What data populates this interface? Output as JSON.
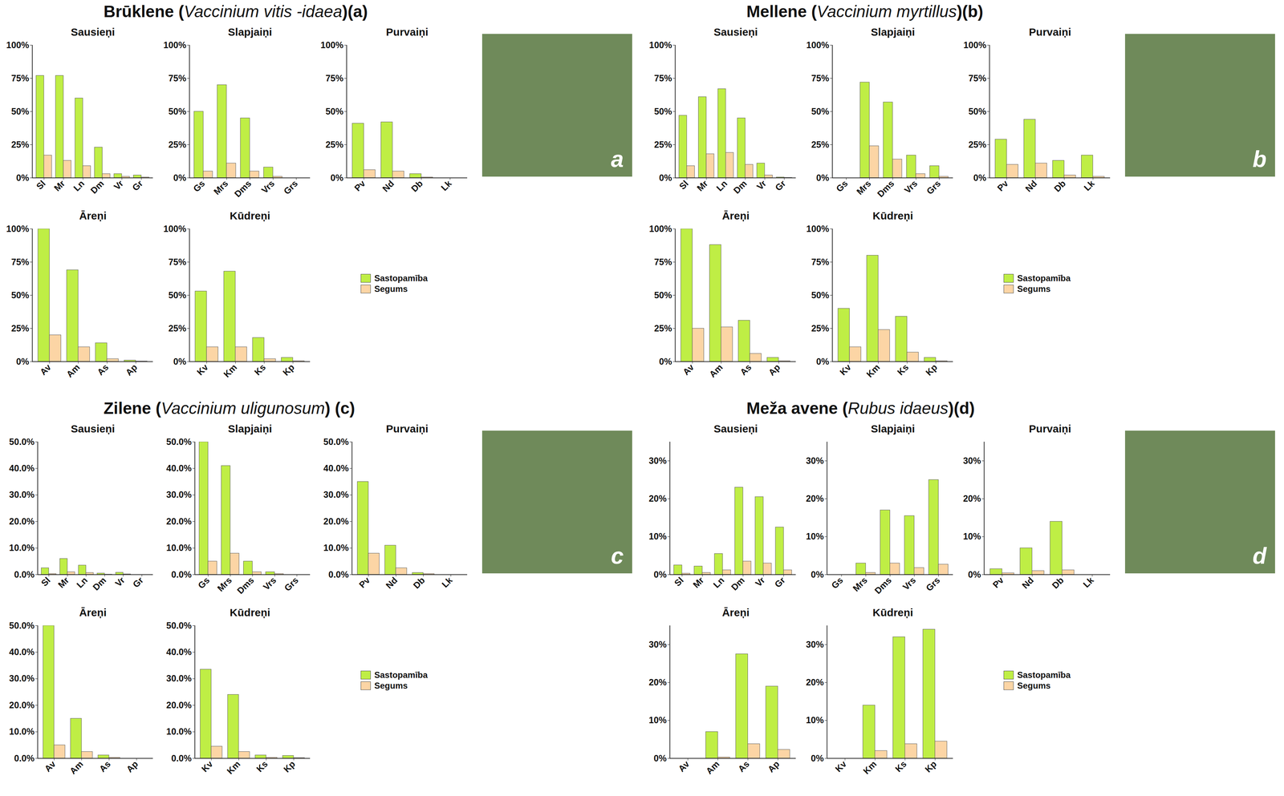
{
  "chart_data": [
    {
      "type": "bar",
      "title": "Brūklene (Vaccinium vitis -idaea)(a)",
      "annotations": [
        "a"
      ],
      "legend": "right",
      "ylim": [
        0,
        100
      ],
      "yticks": [
        {
          "value": 0,
          "label": "0%"
        },
        {
          "value": 25,
          "label": "25%"
        },
        {
          "value": 50,
          "label": "50%"
        },
        {
          "value": 75,
          "label": "75%"
        },
        {
          "value": 100,
          "label": "100%"
        }
      ],
      "panels": [
        {
          "title": "Sausieņi",
          "categories": [
            "Sl",
            "Mr",
            "Ln",
            "Dm",
            "Vr",
            "Gr"
          ],
          "series": [
            {
              "name": "Sastopamība",
              "color": "#bfee45",
              "values": [
                77,
                77,
                60,
                23,
                3,
                2
              ]
            },
            {
              "name": "Segums",
              "color": "#fcd5a5",
              "values": [
                17,
                13,
                9,
                3,
                1,
                0.5
              ]
            }
          ]
        },
        {
          "title": "Slapjaiņi",
          "categories": [
            "Gs",
            "Mrs",
            "Dms",
            "Vrs",
            "Grs"
          ],
          "series": [
            {
              "name": "Sastopamība",
              "color": "#bfee45",
              "values": [
                50,
                70,
                45,
                8,
                0
              ]
            },
            {
              "name": "Segums",
              "color": "#fcd5a5",
              "values": [
                5,
                11,
                5,
                1,
                0
              ]
            }
          ]
        },
        {
          "title": "Purvaiņi",
          "categories": [
            "Pv",
            "Nd",
            "Db",
            "Lk"
          ],
          "series": [
            {
              "name": "Sastopamība",
              "color": "#bfee45",
              "values": [
                41,
                42,
                3,
                0
              ]
            },
            {
              "name": "Segums",
              "color": "#fcd5a5",
              "values": [
                6,
                5,
                0.5,
                0
              ]
            }
          ]
        },
        {
          "title": "Āreņi",
          "categories": [
            "Av",
            "Am",
            "As",
            "Ap"
          ],
          "series": [
            {
              "name": "Sastopamība",
              "color": "#bfee45",
              "values": [
                100,
                69,
                14,
                1
              ]
            },
            {
              "name": "Segums",
              "color": "#fcd5a5",
              "values": [
                20,
                11,
                2,
                0.3
              ]
            }
          ]
        },
        {
          "title": "Kūdreņi",
          "categories": [
            "Kv",
            "Km",
            "Ks",
            "Kp"
          ],
          "series": [
            {
              "name": "Sastopamība",
              "color": "#bfee45",
              "values": [
                53,
                68,
                18,
                3
              ]
            },
            {
              "name": "Segums",
              "color": "#fcd5a5",
              "values": [
                11,
                11,
                2,
                0.5
              ]
            }
          ]
        }
      ]
    },
    {
      "type": "bar",
      "title": "Mellene (Vaccinium myrtillus)(b)",
      "annotations": [
        "b"
      ],
      "legend": "right",
      "ylim": [
        0,
        100
      ],
      "yticks": [
        {
          "value": 0,
          "label": "0%"
        },
        {
          "value": 25,
          "label": "25%"
        },
        {
          "value": 50,
          "label": "50%"
        },
        {
          "value": 75,
          "label": "75%"
        },
        {
          "value": 100,
          "label": "100%"
        }
      ],
      "panels": [
        {
          "title": "Sausieņi",
          "categories": [
            "Sl",
            "Mr",
            "Ln",
            "Dm",
            "Vr",
            "Gr"
          ],
          "series": [
            {
              "name": "Sastopamība",
              "color": "#bfee45",
              "values": [
                47,
                61,
                67,
                45,
                11,
                0.5
              ]
            },
            {
              "name": "Segums",
              "color": "#fcd5a5",
              "values": [
                9,
                18,
                19,
                10,
                2,
                0.2
              ]
            }
          ]
        },
        {
          "title": "Slapjaiņi",
          "categories": [
            "Gs",
            "Mrs",
            "Dms",
            "Vrs",
            "Grs"
          ],
          "series": [
            {
              "name": "Sastopamība",
              "color": "#bfee45",
              "values": [
                0,
                72,
                57,
                17,
                9
              ]
            },
            {
              "name": "Segums",
              "color": "#fcd5a5",
              "values": [
                0,
                24,
                14,
                3,
                1
              ]
            }
          ]
        },
        {
          "title": "Purvaiņi",
          "categories": [
            "Pv",
            "Nd",
            "Db",
            "Lk"
          ],
          "series": [
            {
              "name": "Sastopamība",
              "color": "#bfee45",
              "values": [
                29,
                44,
                13,
                17
              ]
            },
            {
              "name": "Segums",
              "color": "#fcd5a5",
              "values": [
                10,
                11,
                2,
                1
              ]
            }
          ]
        },
        {
          "title": "Āreņi",
          "categories": [
            "Av",
            "Am",
            "As",
            "Ap"
          ],
          "series": [
            {
              "name": "Sastopamība",
              "color": "#bfee45",
              "values": [
                100,
                88,
                31,
                3
              ]
            },
            {
              "name": "Segums",
              "color": "#fcd5a5",
              "values": [
                25,
                26,
                6,
                0.5
              ]
            }
          ]
        },
        {
          "title": "Kūdreņi",
          "categories": [
            "Kv",
            "Km",
            "Ks",
            "Kp"
          ],
          "series": [
            {
              "name": "Sastopamība",
              "color": "#bfee45",
              "values": [
                40,
                80,
                34,
                3
              ]
            },
            {
              "name": "Segums",
              "color": "#fcd5a5",
              "values": [
                11,
                24,
                7,
                0.5
              ]
            }
          ]
        }
      ]
    },
    {
      "type": "bar",
      "title": "Zilene (Vaccinium uligunosum) (c)",
      "annotations": [
        "c"
      ],
      "legend": "right",
      "ylim": [
        0,
        50
      ],
      "yticks": [
        {
          "value": 0,
          "label": "0.0%"
        },
        {
          "value": 10,
          "label": "10.0%"
        },
        {
          "value": 20,
          "label": "20.0%"
        },
        {
          "value": 30,
          "label": "30.0%"
        },
        {
          "value": 40,
          "label": "40.0%"
        },
        {
          "value": 50,
          "label": "50.0%"
        }
      ],
      "panels": [
        {
          "title": "Sausieņi",
          "categories": [
            "Sl",
            "Mr",
            "Ln",
            "Dm",
            "Vr",
            "Gr"
          ],
          "series": [
            {
              "name": "Sastopamība",
              "color": "#bfee45",
              "values": [
                2.5,
                6,
                3.5,
                0.5,
                0.8,
                0
              ]
            },
            {
              "name": "Segums",
              "color": "#fcd5a5",
              "values": [
                0.3,
                1,
                0.7,
                0.1,
                0.2,
                0
              ]
            }
          ]
        },
        {
          "title": "Slapjaiņi",
          "categories": [
            "Gs",
            "Mrs",
            "Dms",
            "Vrs",
            "Grs"
          ],
          "series": [
            {
              "name": "Sastopamība",
              "color": "#bfee45",
              "values": [
                50,
                41,
                5,
                1,
                0
              ]
            },
            {
              "name": "Segums",
              "color": "#fcd5a5",
              "values": [
                5,
                8,
                1,
                0.3,
                0
              ]
            }
          ]
        },
        {
          "title": "Purvaiņi",
          "categories": [
            "Pv",
            "Nd",
            "Db",
            "Lk"
          ],
          "series": [
            {
              "name": "Sastopamība",
              "color": "#bfee45",
              "values": [
                35,
                11,
                0.7,
                0
              ]
            },
            {
              "name": "Segums",
              "color": "#fcd5a5",
              "values": [
                8,
                2.5,
                0.3,
                0
              ]
            }
          ]
        },
        {
          "title": "Āreņi",
          "categories": [
            "Av",
            "Am",
            "As",
            "Ap"
          ],
          "series": [
            {
              "name": "Sastopamība",
              "color": "#bfee45",
              "values": [
                50,
                15,
                1.2,
                0
              ]
            },
            {
              "name": "Segums",
              "color": "#fcd5a5",
              "values": [
                5,
                2.5,
                0.3,
                0
              ]
            }
          ]
        },
        {
          "title": "Kūdreņi",
          "categories": [
            "Kv",
            "Km",
            "Ks",
            "Kp"
          ],
          "series": [
            {
              "name": "Sastopamība",
              "color": "#bfee45",
              "values": [
                33.5,
                24,
                1.2,
                1
              ]
            },
            {
              "name": "Segums",
              "color": "#fcd5a5",
              "values": [
                4.5,
                2.5,
                0.3,
                0.2
              ]
            }
          ]
        }
      ]
    },
    {
      "type": "bar",
      "title": "Meža avene (Rubus idaeus)(d)",
      "annotations": [
        "d"
      ],
      "legend": "right",
      "ylim": [
        0,
        35
      ],
      "yticks": [
        {
          "value": 0,
          "label": "0%"
        },
        {
          "value": 10,
          "label": "10%"
        },
        {
          "value": 20,
          "label": "20%"
        },
        {
          "value": 30,
          "label": "30%"
        }
      ],
      "panels": [
        {
          "title": "Sausieņi",
          "categories": [
            "Sl",
            "Mr",
            "Ln",
            "Dm",
            "Vr",
            "Gr"
          ],
          "series": [
            {
              "name": "Sastopamība",
              "color": "#bfee45",
              "values": [
                2.5,
                2.2,
                5.5,
                23,
                20.5,
                12.5
              ]
            },
            {
              "name": "Segums",
              "color": "#fcd5a5",
              "values": [
                0.3,
                0.5,
                1.2,
                3.5,
                3,
                1.2
              ]
            }
          ]
        },
        {
          "title": "Slapjaiņi",
          "categories": [
            "Gs",
            "Mrs",
            "Dms",
            "Vrs",
            "Grs"
          ],
          "series": [
            {
              "name": "Sastopamība",
              "color": "#bfee45",
              "values": [
                0,
                3,
                17,
                15.5,
                25
              ]
            },
            {
              "name": "Segums",
              "color": "#fcd5a5",
              "values": [
                0,
                0.5,
                3,
                1.8,
                2.7
              ]
            }
          ]
        },
        {
          "title": "Purvaiņi",
          "categories": [
            "Pv",
            "Nd",
            "Db",
            "Lk"
          ],
          "series": [
            {
              "name": "Sastopamība",
              "color": "#bfee45",
              "values": [
                1.5,
                7,
                14,
                0
              ]
            },
            {
              "name": "Segums",
              "color": "#fcd5a5",
              "values": [
                0.4,
                1,
                1.2,
                0
              ]
            }
          ]
        },
        {
          "title": "Āreņi",
          "categories": [
            "Av",
            "Am",
            "As",
            "Ap"
          ],
          "series": [
            {
              "name": "Sastopamība",
              "color": "#bfee45",
              "values": [
                0,
                7,
                27.5,
                19
              ]
            },
            {
              "name": "Segums",
              "color": "#fcd5a5",
              "values": [
                0,
                0.3,
                3.8,
                2.3
              ]
            }
          ]
        },
        {
          "title": "Kūdreņi",
          "categories": [
            "Kv",
            "Km",
            "Ks",
            "Kp"
          ],
          "series": [
            {
              "name": "Sastopamība",
              "color": "#bfee45",
              "values": [
                0,
                14,
                32,
                34
              ]
            },
            {
              "name": "Segums",
              "color": "#fcd5a5",
              "values": [
                0,
                2,
                3.8,
                4.5
              ]
            }
          ]
        }
      ]
    }
  ]
}
